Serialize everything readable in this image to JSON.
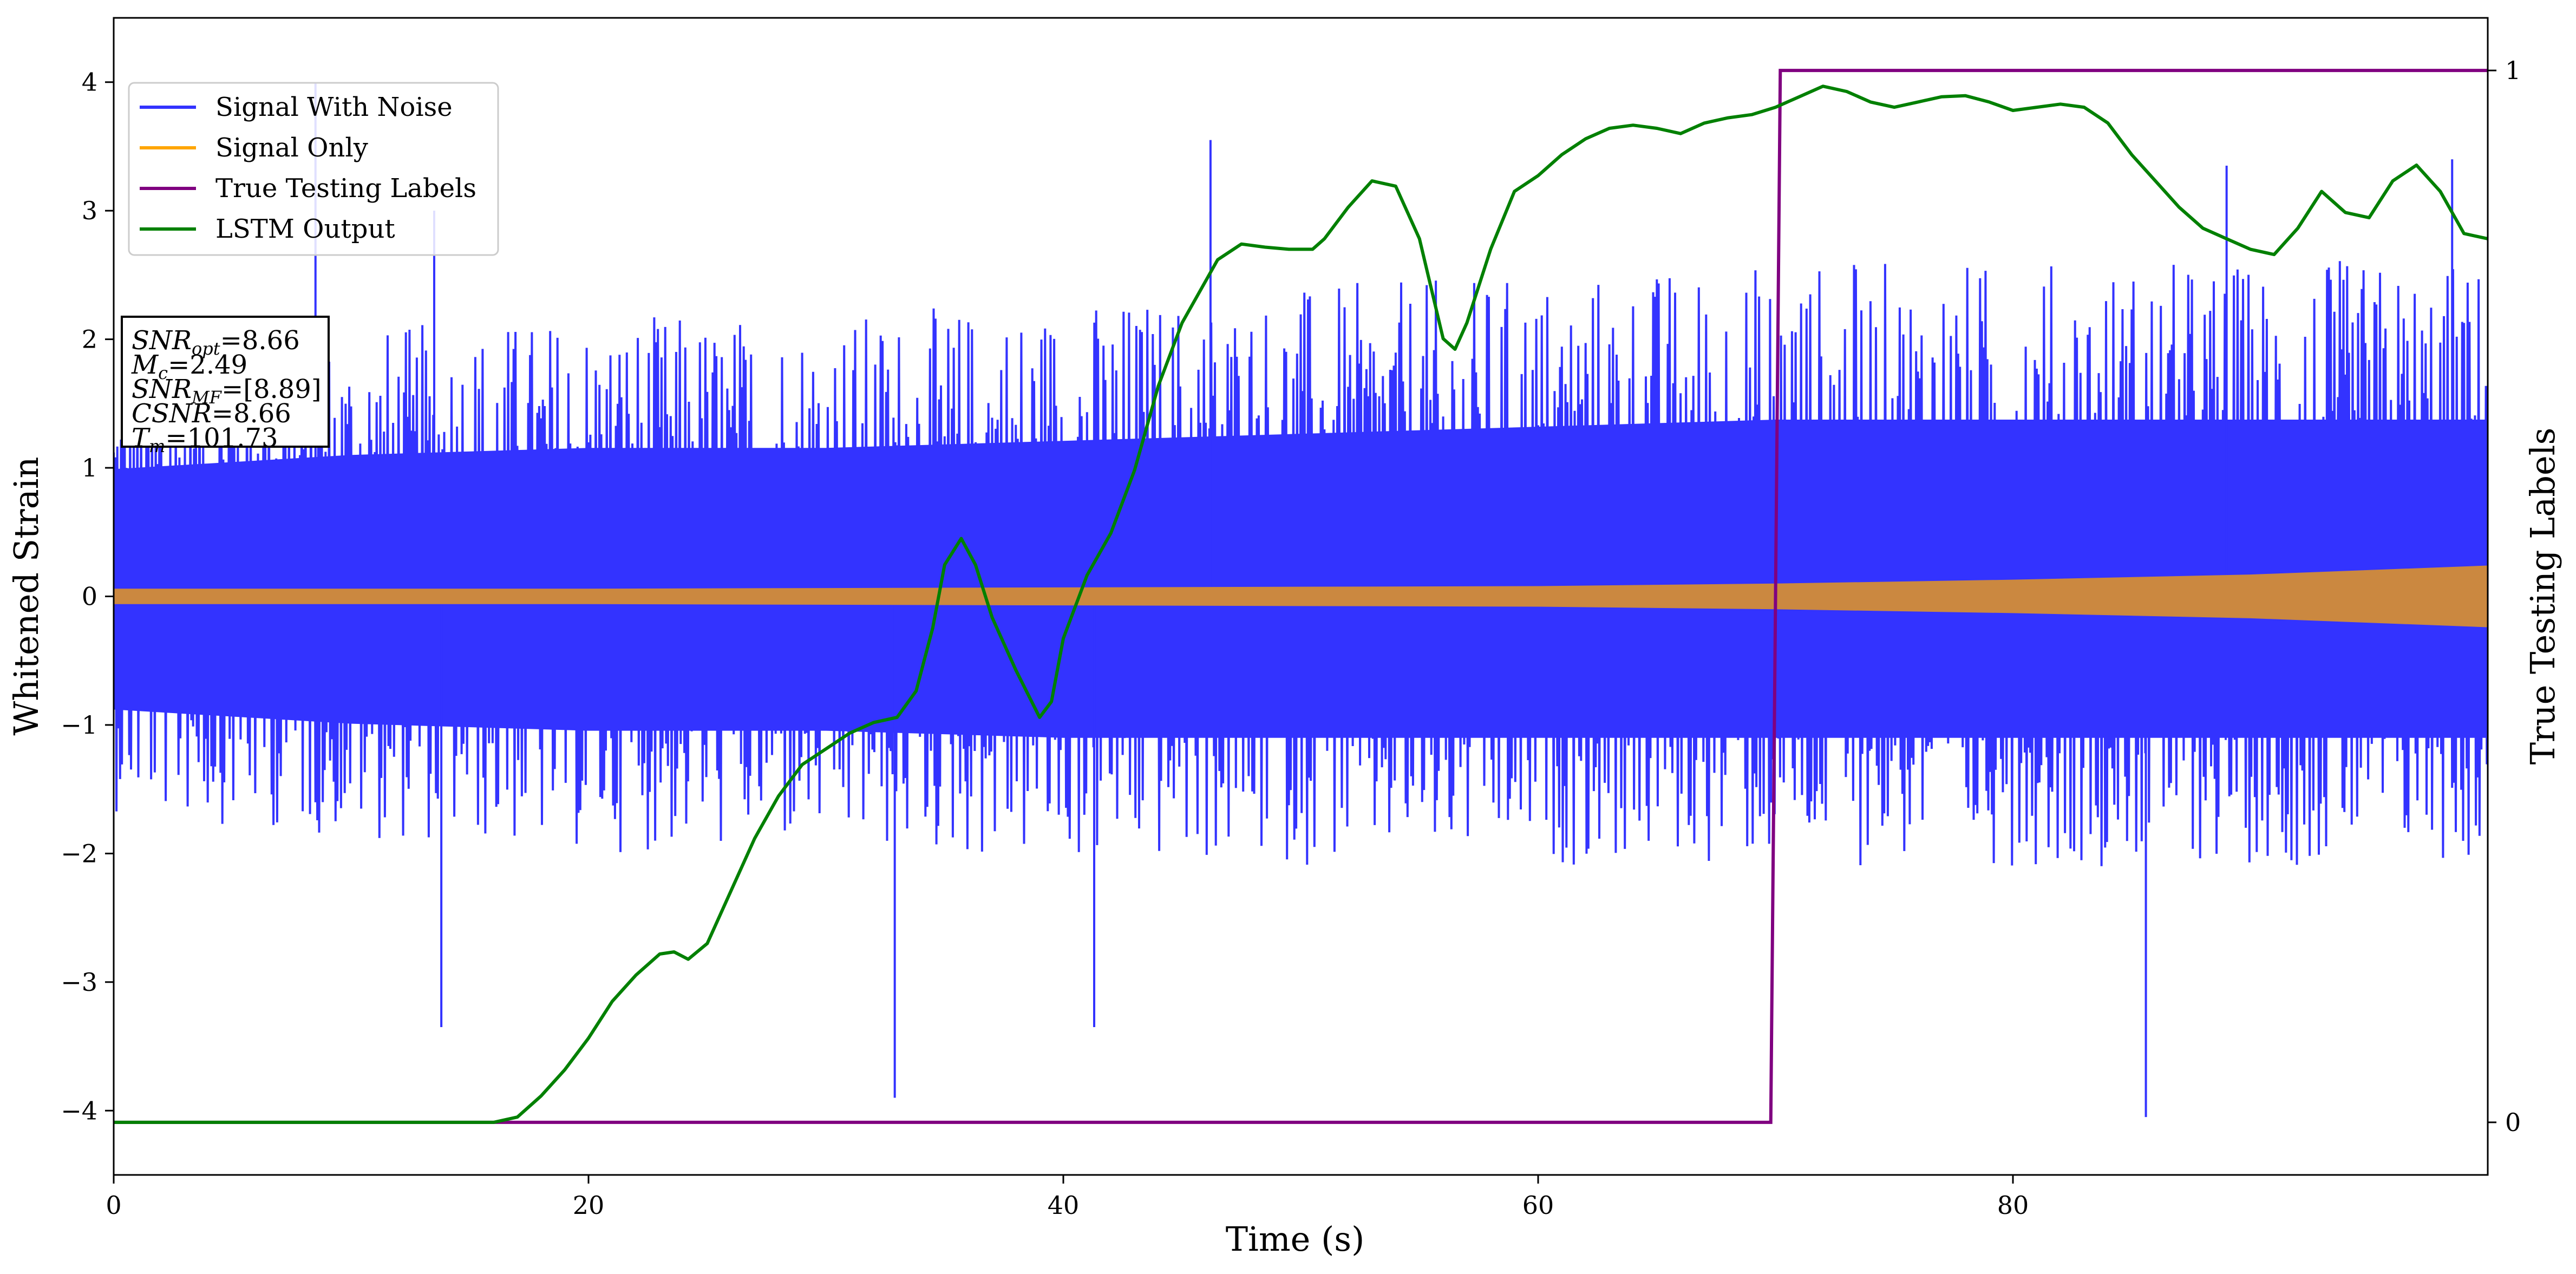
{
  "chart_data": {
    "type": "line",
    "title": "",
    "xlabel": "Time (s)",
    "ylabel": "Whitened Strain",
    "y2label": "True Testing Labels",
    "xlim": [
      0,
      100
    ],
    "ylim": [
      -4.5,
      4.5
    ],
    "y2lim": [
      -0.05,
      1.05
    ],
    "xticks": [
      0,
      20,
      40,
      60,
      80
    ],
    "yticks": [
      -4,
      -3,
      -2,
      -1,
      0,
      1,
      2,
      3,
      4
    ],
    "y2ticks": [
      0,
      1
    ],
    "grid": false,
    "legend_position": "top-left",
    "series": [
      {
        "name": "Signal With Noise",
        "axis": "left",
        "color": "#3333ff",
        "envelope": {
          "x": [
            0,
            10,
            20,
            30,
            40,
            50,
            60,
            70,
            80,
            90,
            100
          ],
          "upper_typical": [
            1.8,
            2.0,
            2.1,
            2.1,
            2.2,
            2.3,
            2.4,
            2.5,
            2.5,
            2.5,
            2.5
          ],
          "lower_typical": [
            -1.6,
            -1.8,
            -1.9,
            -1.9,
            -2.0,
            -2.0,
            -2.0,
            -2.0,
            -2.0,
            -2.0,
            -2.0
          ]
        },
        "spikes": [
          {
            "x": 8.5,
            "y": 4.0
          },
          {
            "x": 13.8,
            "y": -3.35
          },
          {
            "x": 13.5,
            "y": 3.0
          },
          {
            "x": 32.9,
            "y": -3.9
          },
          {
            "x": 41.3,
            "y": -3.35
          },
          {
            "x": 46.2,
            "y": 3.55
          },
          {
            "x": 85.6,
            "y": -4.05
          },
          {
            "x": 89.0,
            "y": 3.35
          },
          {
            "x": 98.5,
            "y": 3.4
          }
        ]
      },
      {
        "name": "Signal Only",
        "axis": "left",
        "color": "#ffa500",
        "envelope": {
          "x": [
            0,
            20,
            40,
            60,
            70,
            80,
            90,
            100
          ],
          "amplitude": [
            0.06,
            0.06,
            0.07,
            0.08,
            0.1,
            0.13,
            0.17,
            0.24
          ]
        }
      },
      {
        "name": "True Testing Labels",
        "axis": "right",
        "color": "#800080",
        "x": [
          0,
          69.8,
          70.2,
          100
        ],
        "y": [
          0,
          0,
          1,
          1
        ]
      },
      {
        "name": "LSTM Output",
        "axis": "right",
        "color": "#008000",
        "x": [
          0,
          14,
          16,
          17,
          18,
          19,
          20,
          21,
          22,
          23,
          23.6,
          24.2,
          25,
          26,
          27,
          28,
          29,
          30,
          31,
          32,
          33,
          33.8,
          34.5,
          35,
          35.7,
          36.3,
          37,
          38,
          39,
          39.5,
          40,
          41,
          42,
          43,
          44,
          45,
          46,
          46.5,
          47.5,
          48.5,
          49.5,
          50.5,
          51,
          52,
          53,
          54,
          55,
          56,
          56.5,
          57,
          58,
          59,
          60,
          61,
          62,
          63,
          64,
          65,
          66,
          67,
          68,
          69,
          70,
          71,
          72,
          73,
          74,
          75,
          76,
          77,
          78,
          79,
          80,
          81,
          82,
          83,
          84,
          85,
          86,
          87,
          88,
          89,
          90,
          91,
          92,
          93,
          94,
          95,
          96,
          97,
          98,
          99,
          100
        ],
        "y": [
          0.0,
          0.0,
          0.0,
          0.005,
          0.025,
          0.05,
          0.08,
          0.115,
          0.14,
          0.16,
          0.162,
          0.155,
          0.17,
          0.22,
          0.27,
          0.31,
          0.34,
          0.355,
          0.37,
          0.38,
          0.385,
          0.41,
          0.47,
          0.53,
          0.555,
          0.53,
          0.48,
          0.43,
          0.385,
          0.4,
          0.46,
          0.52,
          0.56,
          0.62,
          0.7,
          0.76,
          0.8,
          0.82,
          0.835,
          0.832,
          0.83,
          0.83,
          0.84,
          0.87,
          0.895,
          0.89,
          0.84,
          0.745,
          0.735,
          0.76,
          0.83,
          0.885,
          0.9,
          0.92,
          0.935,
          0.945,
          0.948,
          0.945,
          0.94,
          0.95,
          0.955,
          0.958,
          0.965,
          0.975,
          0.985,
          0.98,
          0.97,
          0.965,
          0.97,
          0.975,
          0.976,
          0.97,
          0.962,
          0.965,
          0.968,
          0.965,
          0.95,
          0.92,
          0.895,
          0.87,
          0.85,
          0.84,
          0.83,
          0.825,
          0.85,
          0.885,
          0.865,
          0.86,
          0.895,
          0.91,
          0.885,
          0.845,
          0.84
        ]
      }
    ],
    "annotation_lines": [
      {
        "var": "SNR",
        "sub": "opt",
        "value": "=8.66"
      },
      {
        "var": "M",
        "sub": "c",
        "value": "=2.49"
      },
      {
        "var": "SNR",
        "sub": "MF",
        "value": "=[8.89]"
      },
      {
        "var": "CSNR",
        "sub": "",
        "value": "=8.66"
      },
      {
        "var": "T",
        "sub": "m",
        "value": "=101.73"
      }
    ]
  }
}
